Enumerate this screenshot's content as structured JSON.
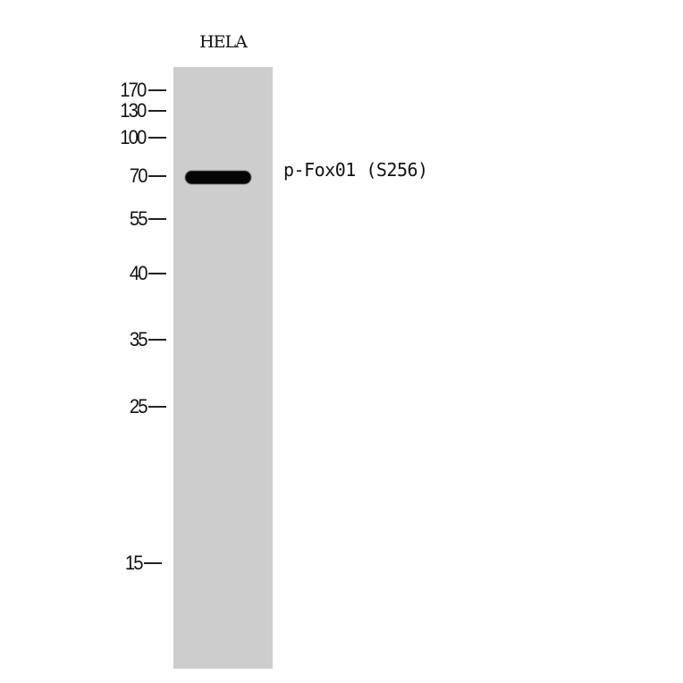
{
  "lane_label": "HELA",
  "markers": [
    "170",
    "130",
    "100",
    "70",
    "55",
    "40",
    "35",
    "25",
    "15"
  ],
  "band_label": "p-Fox01 (S256)",
  "colors": {
    "lane": "#cdcdcd",
    "band": "#050505"
  }
}
